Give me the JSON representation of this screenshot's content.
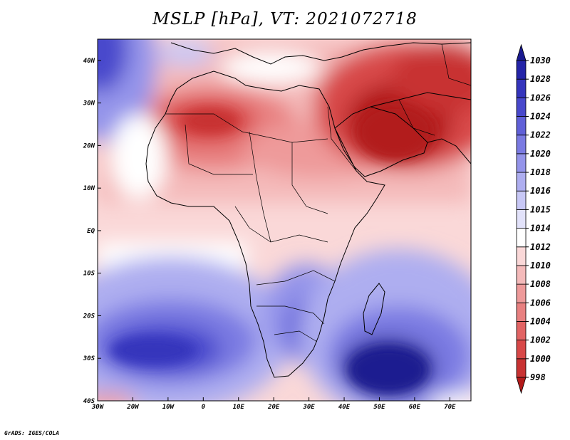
{
  "title": "MSLP [hPa], VT: 2021072718",
  "footer": "GrADS: IGES/COLA",
  "map": {
    "lon_range": [
      -30,
      76
    ],
    "lat_range": [
      -40,
      45
    ],
    "lon_ticks": [
      "30W",
      "20W",
      "10W",
      "0",
      "10E",
      "20E",
      "30E",
      "40E",
      "50E",
      "60E",
      "70E"
    ],
    "lat_ticks": [
      "40S",
      "30S",
      "20S",
      "10S",
      "EQ",
      "10N",
      "20N",
      "30N",
      "40N"
    ]
  },
  "colorbar": {
    "levels": [
      "998",
      "1000",
      "1002",
      "1004",
      "1006",
      "1008",
      "1010",
      "1012",
      "1014",
      "1015",
      "1016",
      "1018",
      "1020",
      "1022",
      "1024",
      "1026",
      "1028",
      "1030"
    ],
    "colors": [
      "#b21a1a",
      "#c83232",
      "#d84848",
      "#e26464",
      "#e88080",
      "#ee9a9a",
      "#f4baba",
      "#fad8d8",
      "#ffffff",
      "#e2e2fa",
      "#c8c8f6",
      "#aeaef0",
      "#9494ea",
      "#7a7ae2",
      "#6060d8",
      "#4848cc",
      "#3434bc",
      "#2424a8",
      "#1a1a90"
    ]
  },
  "colors": {
    "frame": "#000000",
    "background": "#ffffff"
  }
}
